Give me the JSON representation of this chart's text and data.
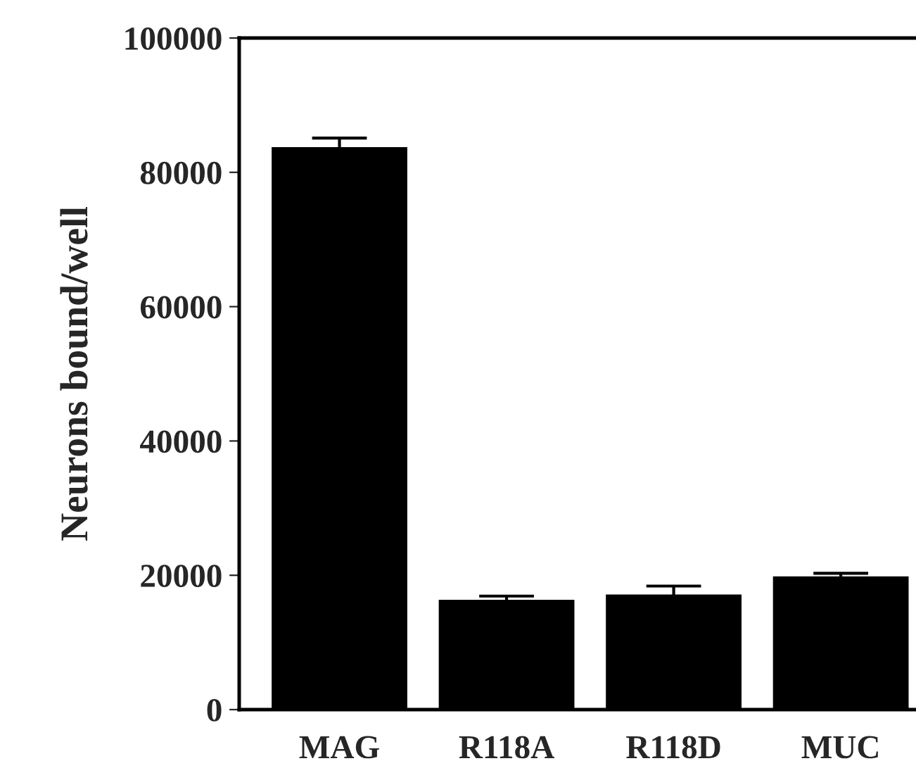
{
  "chart_data": {
    "type": "bar",
    "ylabel": "Neurons bound/well",
    "categories": [
      "MAG",
      "R118A",
      "R118D",
      "MUC"
    ],
    "values": [
      83600,
      16200,
      17000,
      19700
    ],
    "errors": [
      1500,
      700,
      1400,
      600
    ],
    "color": "#000000",
    "ylim": [
      0,
      100000
    ],
    "yticks": [
      0,
      20000,
      40000,
      60000,
      80000,
      100000
    ],
    "grid": false
  }
}
